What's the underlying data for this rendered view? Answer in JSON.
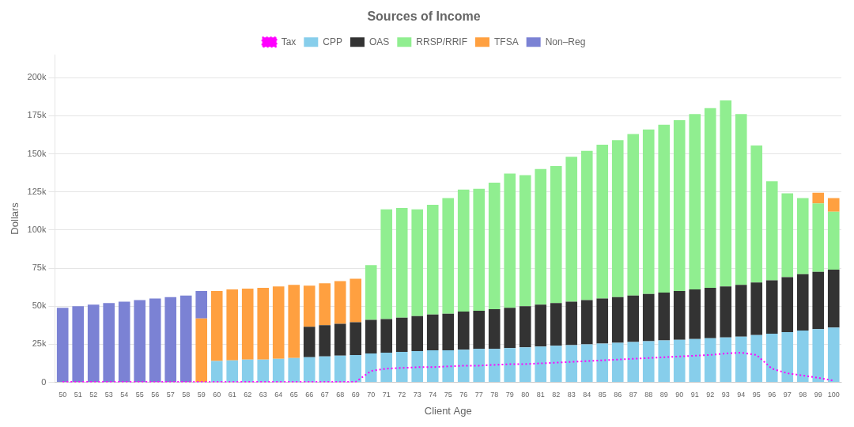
{
  "chart_data": {
    "type": "bar",
    "stacked": true,
    "title": "Sources of Income",
    "x_label": "Client Age",
    "y_label": "Dollars",
    "categories": [
      "50",
      "51",
      "52",
      "53",
      "54",
      "55",
      "56",
      "57",
      "58",
      "59",
      "60",
      "61",
      "62",
      "63",
      "64",
      "65",
      "66",
      "67",
      "68",
      "69",
      "70",
      "71",
      "72",
      "73",
      "74",
      "75",
      "76",
      "77",
      "78",
      "79",
      "80",
      "81",
      "82",
      "83",
      "84",
      "85",
      "86",
      "87",
      "88",
      "89",
      "90",
      "91",
      "92",
      "93",
      "94",
      "95",
      "96",
      "97",
      "98",
      "99",
      "100"
    ],
    "series": [
      {
        "name": "CPP",
        "color": "#87CEEB",
        "values": [
          0,
          0,
          0,
          0,
          0,
          0,
          0,
          0,
          0,
          0,
          14000,
          14500,
          15000,
          15000,
          15500,
          16000,
          16500,
          17000,
          17500,
          18000,
          19000,
          19500,
          20000,
          20500,
          21000,
          21000,
          21500,
          22000,
          22000,
          22500,
          23000,
          23500,
          24000,
          24500,
          25000,
          25500,
          26000,
          26500,
          27000,
          27500,
          28000,
          28500,
          29000,
          29500,
          30000,
          31000,
          32000,
          33000,
          34000,
          35000,
          36000
        ]
      },
      {
        "name": "OAS",
        "color": "#333333",
        "values": [
          0,
          0,
          0,
          0,
          0,
          0,
          0,
          0,
          0,
          0,
          0,
          0,
          0,
          0,
          0,
          0,
          20000,
          20500,
          21000,
          21500,
          22000,
          22000,
          22500,
          23000,
          23500,
          24000,
          25000,
          25000,
          26000,
          26500,
          27000,
          27500,
          28000,
          28500,
          29000,
          29500,
          30000,
          30500,
          31000,
          31500,
          32000,
          32500,
          33000,
          33500,
          34000,
          34500,
          35000,
          36000,
          37000,
          37500,
          38000
        ]
      },
      {
        "name": "RRSP/RRIF",
        "color": "#90EE90",
        "values": [
          0,
          0,
          0,
          0,
          0,
          0,
          0,
          0,
          0,
          0,
          0,
          0,
          0,
          0,
          0,
          0,
          0,
          0,
          0,
          0,
          36000,
          72000,
          72000,
          70000,
          72000,
          76000,
          80000,
          80000,
          83000,
          88000,
          86000,
          89000,
          90000,
          95000,
          98000,
          101000,
          103000,
          106000,
          108000,
          110000,
          112000,
          115000,
          118000,
          122000,
          112000,
          90000,
          65000,
          55000,
          50000,
          45000,
          38000
        ]
      },
      {
        "name": "TFSA",
        "color": "#FFA040",
        "values": [
          0,
          0,
          0,
          0,
          0,
          0,
          0,
          0,
          0,
          42000,
          46000,
          46500,
          46500,
          47000,
          47500,
          48000,
          27000,
          27500,
          28000,
          28500,
          0,
          0,
          0,
          0,
          0,
          0,
          0,
          0,
          0,
          0,
          0,
          0,
          0,
          0,
          0,
          0,
          0,
          0,
          0,
          0,
          0,
          0,
          0,
          0,
          0,
          0,
          0,
          0,
          0,
          7000,
          9000
        ]
      },
      {
        "name": "Non–Reg",
        "color": "#7B82D4",
        "values": [
          49000,
          50000,
          51000,
          52000,
          53000,
          54000,
          55000,
          56000,
          57000,
          18000,
          0,
          0,
          0,
          0,
          0,
          0,
          0,
          0,
          0,
          0,
          0,
          0,
          0,
          0,
          0,
          0,
          0,
          0,
          0,
          0,
          0,
          0,
          0,
          0,
          0,
          0,
          0,
          0,
          0,
          0,
          0,
          0,
          0,
          0,
          0,
          0,
          0,
          0,
          0,
          0,
          0
        ]
      },
      {
        "name": "Tax",
        "type": "line",
        "line_style": "dotted",
        "color": "#FF00FF",
        "values": [
          300,
          300,
          300,
          300,
          300,
          300,
          300,
          300,
          300,
          300,
          300,
          300,
          300,
          300,
          300,
          300,
          300,
          300,
          300,
          300,
          7500,
          9000,
          9500,
          10000,
          10000,
          10500,
          11000,
          11000,
          11500,
          12000,
          12000,
          12500,
          13000,
          13500,
          14000,
          14500,
          15000,
          15500,
          16000,
          16500,
          17000,
          17500,
          18000,
          19000,
          19500,
          18000,
          9000,
          6000,
          4500,
          3000,
          1200
        ]
      }
    ],
    "ylim": [
      0,
      215000
    ],
    "yticks": [
      {
        "value": 0,
        "label": "0"
      },
      {
        "value": 25000,
        "label": "25k"
      },
      {
        "value": 50000,
        "label": "50k"
      },
      {
        "value": 75000,
        "label": "75k"
      },
      {
        "value": 100000,
        "label": "100k"
      },
      {
        "value": 125000,
        "label": "125k"
      },
      {
        "value": 150000,
        "label": "150k"
      },
      {
        "value": 175000,
        "label": "175k"
      },
      {
        "value": 200000,
        "label": "200k"
      }
    ],
    "grid": true,
    "legend": "top"
  }
}
